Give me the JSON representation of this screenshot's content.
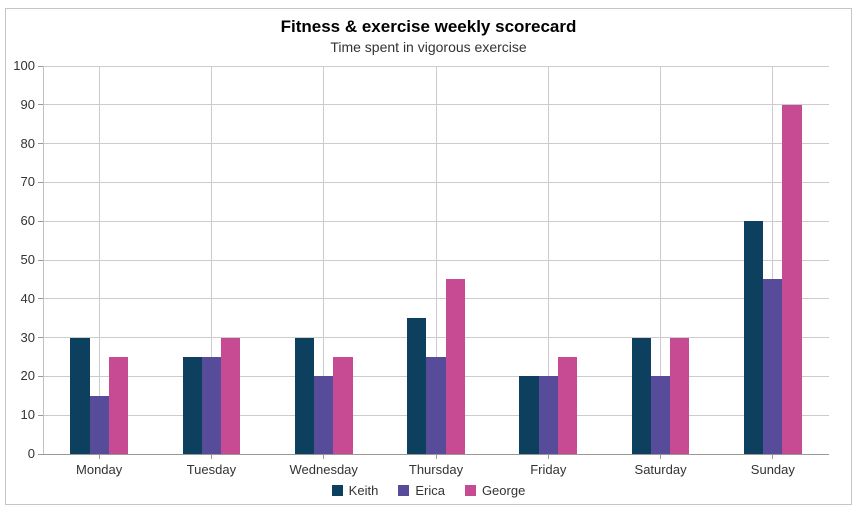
{
  "chart_data": {
    "type": "bar",
    "title": "Fitness & exercise weekly scorecard",
    "subtitle": "Time spent in vigorous exercise",
    "categories": [
      "Monday",
      "Tuesday",
      "Wednesday",
      "Thursday",
      "Friday",
      "Saturday",
      "Sunday"
    ],
    "series": [
      {
        "name": "Keith",
        "color": "#0d3f5e",
        "values": [
          30,
          25,
          30,
          35,
          20,
          30,
          60
        ]
      },
      {
        "name": "Erica",
        "color": "#564c99",
        "values": [
          15,
          25,
          20,
          25,
          20,
          20,
          45
        ]
      },
      {
        "name": "George",
        "color": "#c74b92",
        "values": [
          25,
          30,
          25,
          45,
          25,
          30,
          90
        ]
      }
    ],
    "ylim": [
      0,
      100
    ],
    "ytick_step": 10,
    "ytick_labels": [
      "0",
      "10",
      "20",
      "30",
      "40",
      "50",
      "60",
      "70",
      "80",
      "90",
      "100"
    ],
    "grid": true,
    "legend_position": "bottom"
  },
  "colors": {
    "grid": "#cccccc",
    "axis_line": "#999999",
    "y_axis_line": "#c0c0c0",
    "container_border": "#c5c5c5",
    "label_text": "#333333",
    "title_text": "#000000"
  }
}
